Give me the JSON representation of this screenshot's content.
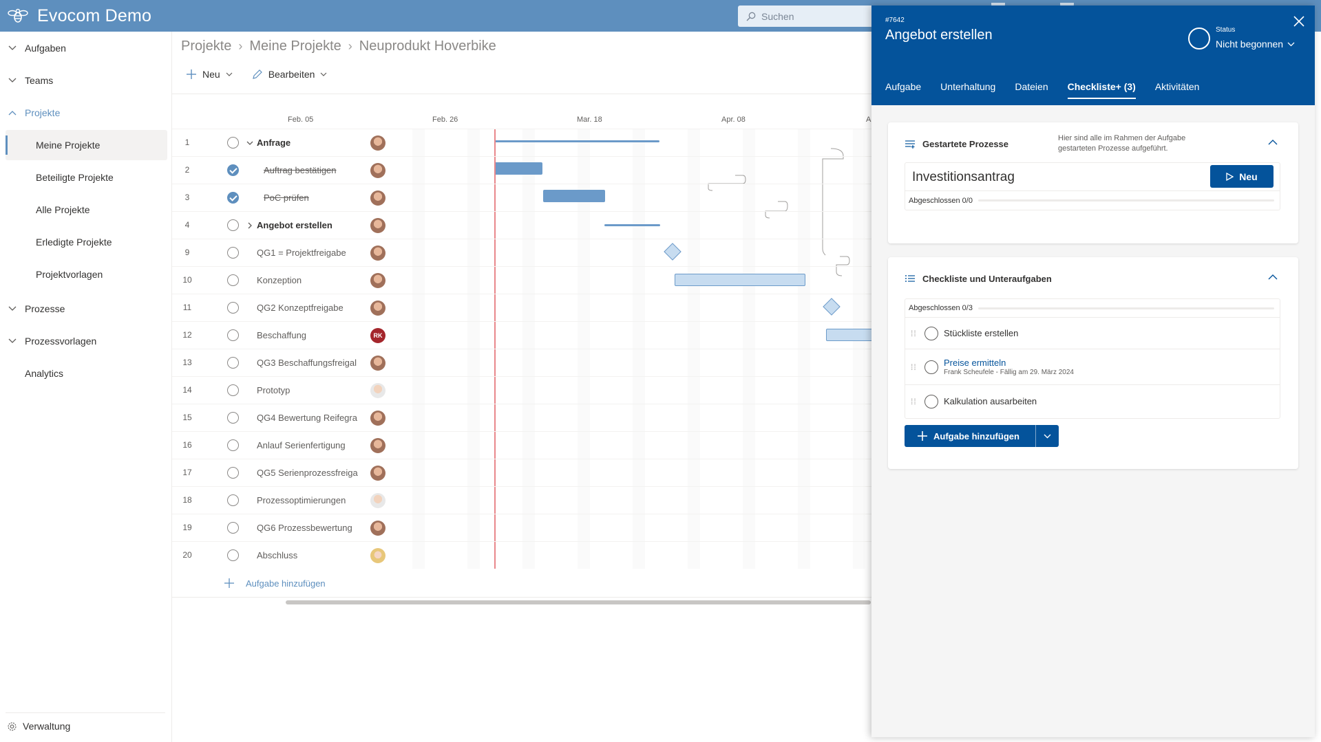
{
  "app": {
    "name": "Evocom Demo"
  },
  "search": {
    "placeholder": "Suchen"
  },
  "nav": {
    "items": [
      "Aufgaben",
      "Teams",
      "Projekte",
      "Prozesse",
      "Prozessvorlagen",
      "Analytics"
    ],
    "project_subitems": [
      "Meine Projekte",
      "Beteiligte Projekte",
      "Alle Projekte",
      "Erledigte Projekte",
      "Projektvorlagen"
    ],
    "admin": "Verwaltung"
  },
  "breadcrumb": [
    "Projekte",
    "Meine Projekte",
    "Neuprodukt Hoverbike"
  ],
  "toolbar": {
    "new_label": "Neu",
    "edit_label": "Bearbeiten"
  },
  "timeline": {
    "dates": [
      "Feb. 05",
      "Feb. 26",
      "Mar. 18",
      "Apr. 08",
      "A"
    ]
  },
  "tasks": [
    {
      "num": "1",
      "title": "Anfrage",
      "style": "group-open",
      "done": false,
      "avatar": "photo"
    },
    {
      "num": "2",
      "title": "Auftrag bestätigen",
      "style": "done",
      "done": true,
      "avatar": "photo"
    },
    {
      "num": "3",
      "title": "PoC prüfen",
      "style": "done",
      "done": true,
      "avatar": "photo"
    },
    {
      "num": "4",
      "title": "Angebot erstellen",
      "style": "group-closed",
      "done": false,
      "avatar": "photo"
    },
    {
      "num": "9",
      "title": "QG1 = Projektfreigabe",
      "style": "normal",
      "done": false,
      "avatar": "photo"
    },
    {
      "num": "10",
      "title": "Konzeption",
      "style": "normal",
      "done": false,
      "avatar": "photo"
    },
    {
      "num": "11",
      "title": "QG2 Konzeptfreigabe",
      "style": "normal",
      "done": false,
      "avatar": "photo"
    },
    {
      "num": "12",
      "title": "Beschaffung",
      "style": "normal",
      "done": false,
      "avatar": "RK"
    },
    {
      "num": "13",
      "title": "QG3 Beschaffungsfreigal",
      "style": "normal",
      "done": false,
      "avatar": "photo"
    },
    {
      "num": "14",
      "title": "Prototyp",
      "style": "normal",
      "done": false,
      "avatar": "light"
    },
    {
      "num": "15",
      "title": "QG4 Bewertung Reifegra",
      "style": "normal",
      "done": false,
      "avatar": "photo"
    },
    {
      "num": "16",
      "title": "Anlauf Serienfertigung",
      "style": "normal",
      "done": false,
      "avatar": "photo"
    },
    {
      "num": "17",
      "title": "QG5 Serienprozessfreiga",
      "style": "normal",
      "done": false,
      "avatar": "photo"
    },
    {
      "num": "18",
      "title": "Prozessoptimierungen",
      "style": "normal",
      "done": false,
      "avatar": "light"
    },
    {
      "num": "19",
      "title": "QG6 Prozessbewertung",
      "style": "normal",
      "done": false,
      "avatar": "photo"
    },
    {
      "num": "20",
      "title": "Abschluss",
      "style": "normal",
      "done": false,
      "avatar": "blonde"
    }
  ],
  "add_task_label": "Aufgabe hinzufügen",
  "panel": {
    "id": "#7642",
    "title": "Angebot erstellen",
    "status_label": "Status",
    "status_value": "Nicht begonnen",
    "tabs": [
      "Aufgabe",
      "Unterhaltung",
      "Dateien",
      "Checkliste+ (3)",
      "Aktivitäten"
    ],
    "active_tab": "Checkliste+ (3)",
    "processes_card": {
      "title": "Gestartete Prozesse",
      "info": "Hier sind alle im Rahmen der Aufgabe gestarteten Prozesse aufgeführt.",
      "process_name": "Investitionsantrag",
      "new_button": "Neu",
      "progress_label": "Abgeschlossen 0/0",
      "progress_fraction": 0
    },
    "checklist_card": {
      "title": "Checkliste und Unteraufgaben",
      "progress_label": "Abgeschlossen 0/3",
      "progress_fraction": 0,
      "items": [
        {
          "text": "Stückliste erstellen",
          "link": false,
          "sub": ""
        },
        {
          "text": "Preise ermitteln",
          "link": true,
          "sub": "Frank Scheufele - Fällig am 29. März 2024"
        },
        {
          "text": "Kalkulation ausarbeiten",
          "link": false,
          "sub": ""
        }
      ],
      "add_button": "Aufgabe hinzufügen"
    }
  },
  "colors": {
    "topbar": "#5e8fbe",
    "panel_header": "#04539b",
    "accent": "#04539b",
    "today_line": "#e8878b"
  }
}
